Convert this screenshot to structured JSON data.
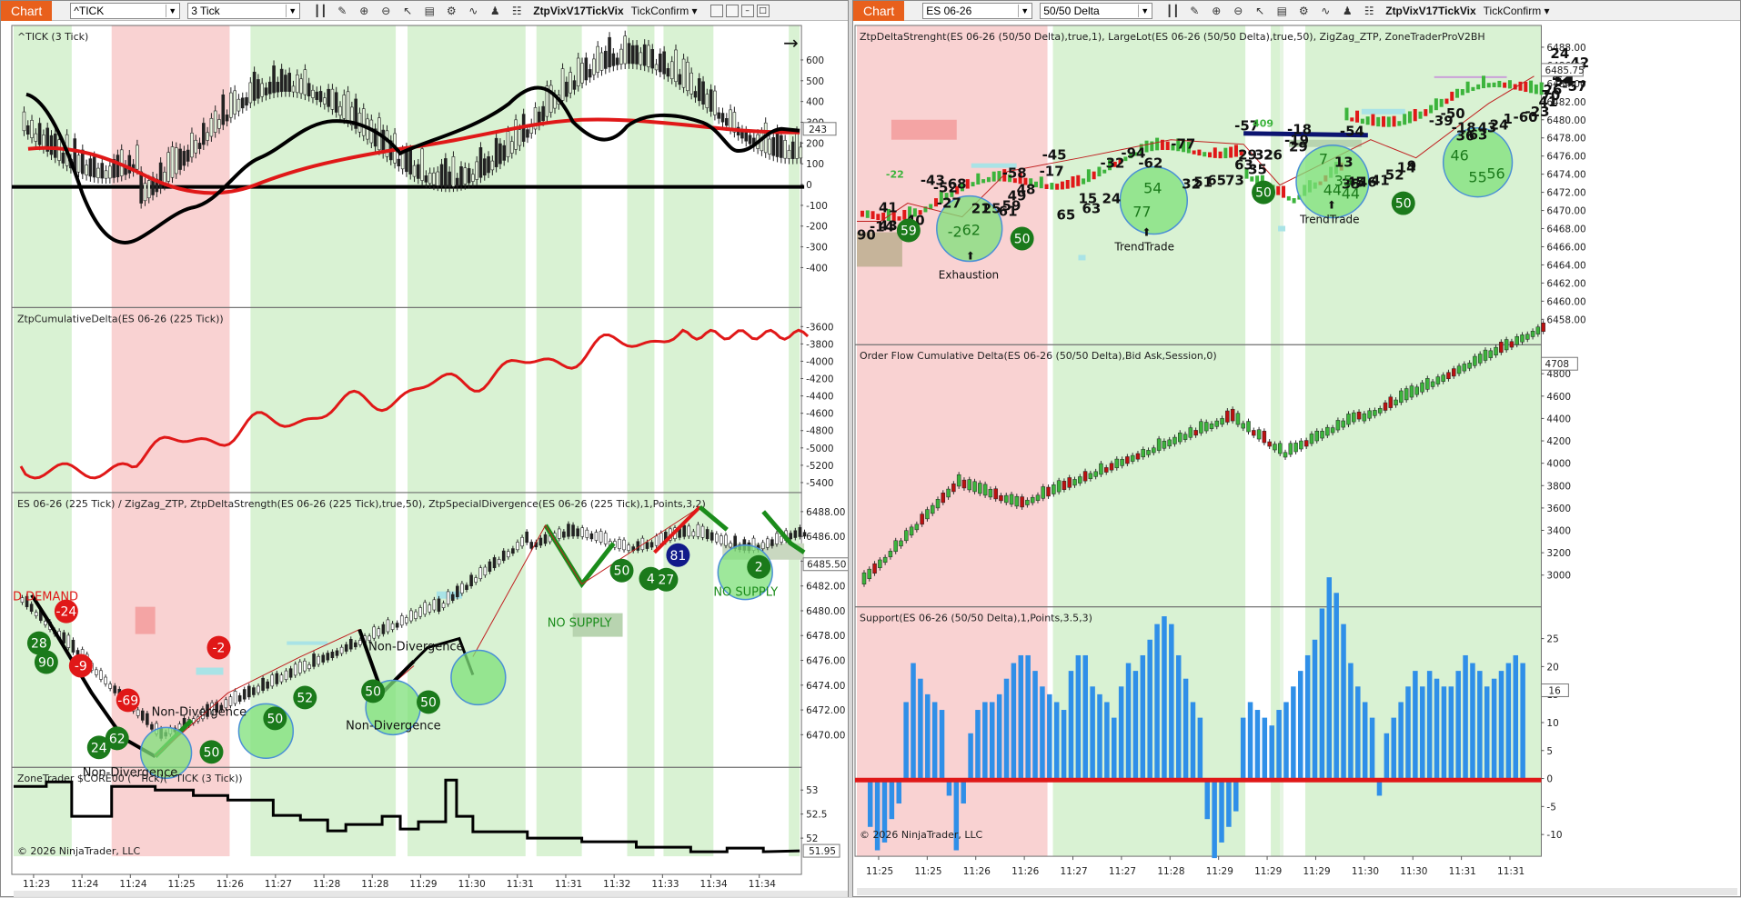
{
  "left": {
    "tab_label": "Chart",
    "instrument": "^TICK",
    "interval": "3 Tick",
    "strategy_title": "ZtpVixV17TickVix",
    "confirm_label": "TickConfirm",
    "panels": {
      "tick": {
        "title": "^TICK (3 Tick)",
        "axis": [
          "600",
          "500",
          "400",
          "300",
          "200",
          "100",
          "0",
          "-100",
          "-200",
          "-300",
          "-400"
        ],
        "price_tag": "243"
      },
      "cumdelta": {
        "title": "ZtpCumulativeDelta(ES 06-26 (225 Tick))",
        "axis": [
          "-3600",
          "-3800",
          "-4000",
          "-4200",
          "-4400",
          "-4600",
          "-4800",
          "-5000",
          "-5200",
          "-5400"
        ]
      },
      "price": {
        "title": "ES 06-26 (225 Tick) / ZigZag_ZTP, ZtpDeltaStrength(ES 06-26 (225 Tick),true,50), ZtpSpecialDivergence(ES 06-26 (225 Tick),1,Points,3,2)",
        "axis": [
          "6488.00",
          "6486.00",
          "6484.00",
          "6482.00",
          "6480.00",
          "6478.00",
          "6476.00",
          "6474.00",
          "6472.00",
          "6470.00"
        ],
        "price_tag": "6485.50",
        "labels": {
          "demand": "D DEMAND",
          "non_div_1": "Non-Divergence",
          "non_div_2": "Non-Divergence",
          "non_div_3": "Non-Divergence",
          "non_div_4": "Non-Divergence",
          "no_supply_1": "NO SUPPLY",
          "no_supply_2": "NO SUPPLY"
        },
        "markers": [
          {
            "text": "-24",
            "color": "#e01818"
          },
          {
            "text": "28",
            "color": "#1b7a1b"
          },
          {
            "text": "90",
            "color": "#1b7a1b"
          },
          {
            "text": "-9",
            "color": "#e01818"
          },
          {
            "text": "-69",
            "color": "#e01818"
          },
          {
            "text": "24",
            "color": "#1b7a1b"
          },
          {
            "text": "62",
            "color": "#1b7a1b"
          },
          {
            "text": "50",
            "color": "#1b7a1b"
          },
          {
            "text": "-2",
            "color": "#e01818"
          },
          {
            "text": "50",
            "color": "#1b7a1b"
          },
          {
            "text": "52",
            "color": "#1b7a1b"
          },
          {
            "text": "50",
            "color": "#1b7a1b"
          },
          {
            "text": "50",
            "color": "#1b7a1b"
          },
          {
            "text": "50",
            "color": "#1b7a1b"
          },
          {
            "text": "4",
            "color": "#1b7a1b"
          },
          {
            "text": "27",
            "color": "#1b7a1b"
          },
          {
            "text": "81",
            "color": "#111a8a"
          },
          {
            "text": "2",
            "color": "#1b7a1b"
          }
        ]
      },
      "zone": {
        "title": "ZoneTrader $CORE00 (^Tick)(^TICK (3 Tick))",
        "axis": [
          "53",
          "52.5",
          "52"
        ],
        "price_tag": "51.95",
        "copyright": "© 2026 NinjaTrader, LLC"
      }
    },
    "time_axis": [
      "11:23",
      "11:24",
      "11:24",
      "11:25",
      "11:26",
      "11:27",
      "11:28",
      "11:28",
      "11:29",
      "11:30",
      "11:31",
      "11:31",
      "11:32",
      "11:33",
      "11:34",
      "11:34"
    ]
  },
  "right": {
    "tab_label": "Chart",
    "instrument": "ES 06-26",
    "interval": "50/50 Delta",
    "strategy_title": "ZtpVixV17TickVix",
    "confirm_label": "TickConfirm",
    "panels": {
      "price": {
        "title": "ZtpDeltaStrenght(ES 06-26 (50/50 Delta),true,1), LargeLot(ES 06-26 (50/50 Delta),true,50), ZigZag_ZTP, ZoneTraderProV2BH",
        "axis": [
          "6488.00",
          "6486.00",
          "6484.00",
          "6482.00",
          "6480.00",
          "6478.00",
          "6476.00",
          "6474.00",
          "6472.00",
          "6470.00",
          "6468.00",
          "6466.00",
          "6464.00",
          "6462.00",
          "6460.00",
          "6458.00"
        ],
        "price_tag": "6485.75",
        "labels": {
          "exhaustion": "Exhaustion",
          "trend_1": "TrendTrade",
          "trend_2": "TrendTrade"
        },
        "numbers": [
          {
            "text": "90"
          },
          {
            "text": "-14"
          },
          {
            "text": "43"
          },
          {
            "text": "41"
          },
          {
            "text": "40"
          },
          {
            "text": "-22"
          },
          {
            "text": "-43"
          },
          {
            "text": "-52"
          },
          {
            "text": "68"
          },
          {
            "text": "-27"
          },
          {
            "text": "21"
          },
          {
            "text": "25"
          },
          {
            "text": "61"
          },
          {
            "text": "59"
          },
          {
            "text": "-58"
          },
          {
            "text": "49"
          },
          {
            "text": "48"
          },
          {
            "text": "-45"
          },
          {
            "text": "-17"
          },
          {
            "text": "65"
          },
          {
            "text": "15"
          },
          {
            "text": "63"
          },
          {
            "text": "24"
          },
          {
            "text": "-32"
          },
          {
            "text": "-94"
          },
          {
            "text": "-62"
          },
          {
            "text": "-77"
          },
          {
            "text": "32"
          },
          {
            "text": "51"
          },
          {
            "text": "65"
          },
          {
            "text": "73"
          },
          {
            "text": "-57"
          },
          {
            "text": "63"
          },
          {
            "text": "35"
          },
          {
            "text": "29"
          },
          {
            "text": "32"
          },
          {
            "text": "26"
          },
          {
            "text": "409"
          },
          {
            "text": "-18"
          },
          {
            "text": "-19"
          },
          {
            "text": "29"
          },
          {
            "text": "-54"
          },
          {
            "text": "13"
          },
          {
            "text": "35"
          },
          {
            "text": "45"
          },
          {
            "text": "46"
          },
          {
            "text": "41"
          },
          {
            "text": "52"
          },
          {
            "text": "14"
          },
          {
            "text": "9"
          },
          {
            "text": "-39"
          },
          {
            "text": "-50"
          },
          {
            "text": "-18"
          },
          {
            "text": "36"
          },
          {
            "text": "63"
          },
          {
            "text": "43"
          },
          {
            "text": "24"
          },
          {
            "text": "1"
          },
          {
            "text": "-60"
          },
          {
            "text": "-23"
          },
          {
            "text": "41"
          },
          {
            "text": "70"
          },
          {
            "text": "26"
          },
          {
            "text": "42"
          },
          {
            "text": "42"
          },
          {
            "text": "24"
          },
          {
            "text": "54"
          },
          {
            "text": "-57"
          },
          {
            "text": "-4"
          },
          {
            "text": "42"
          }
        ],
        "bubbles": [
          {
            "text": "59"
          },
          {
            "text": "50"
          },
          {
            "text": "62"
          },
          {
            "text": "-2"
          },
          {
            "text": "77"
          },
          {
            "text": "54"
          },
          {
            "text": "44"
          },
          {
            "text": "7"
          },
          {
            "text": "50"
          },
          {
            "text": "35"
          },
          {
            "text": "44"
          },
          {
            "text": "50"
          },
          {
            "text": "46"
          },
          {
            "text": "55"
          },
          {
            "text": "56"
          }
        ]
      },
      "ofcd": {
        "title": "Order Flow Cumulative Delta(ES 06-26 (50/50 Delta),Bid Ask,Session,0)",
        "axis": [
          "4800",
          "4600",
          "4400",
          "4200",
          "4000",
          "3800",
          "3600",
          "3400",
          "3200",
          "3000"
        ],
        "price_tag": "4708"
      },
      "support": {
        "title": "Support(ES 06-26 (50/50 Delta),1,Points,3.5,3)",
        "axis": [
          "25",
          "20",
          "15",
          "10",
          "5",
          "0",
          "-5",
          "-10"
        ],
        "price_tag": "16",
        "copyright": "© 2026 NinjaTrader, LLC"
      }
    },
    "time_axis": [
      "11:25",
      "11:25",
      "11:26",
      "11:26",
      "11:27",
      "11:27",
      "11:28",
      "11:29",
      "11:29",
      "11:29",
      "11:30",
      "11:30",
      "11:31",
      "11:31"
    ]
  }
}
